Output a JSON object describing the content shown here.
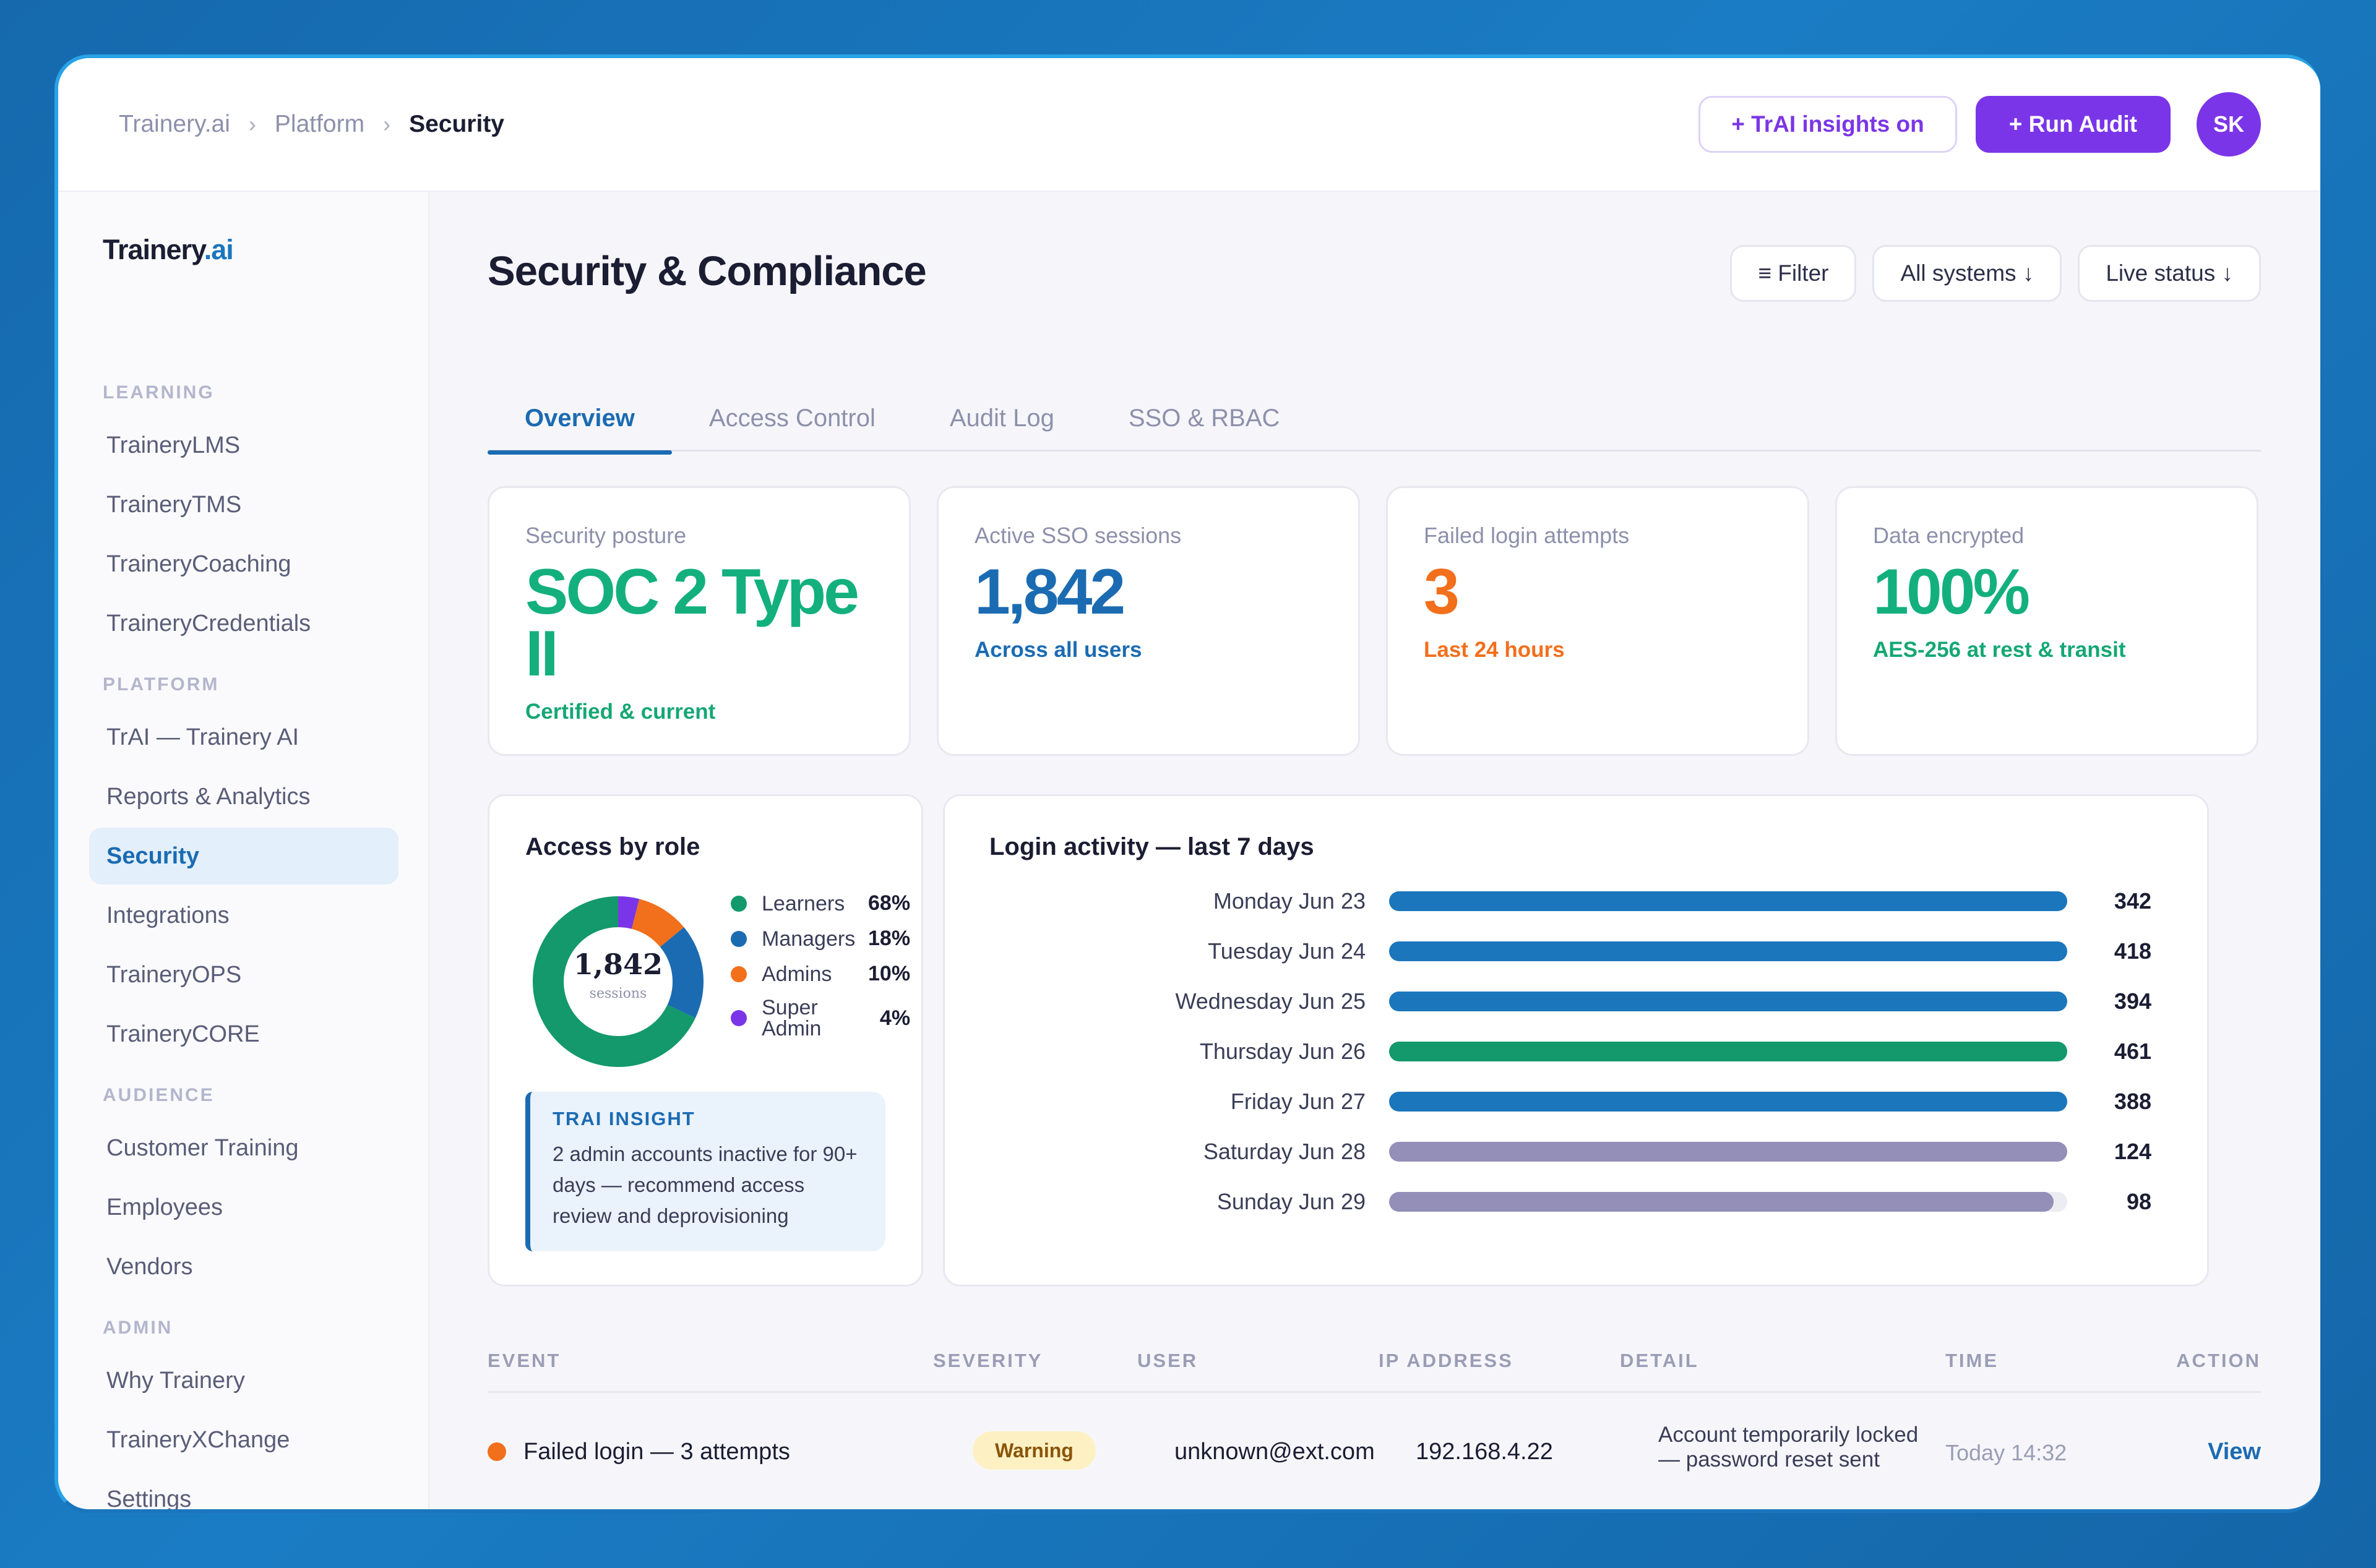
{
  "breadcrumb": {
    "items": [
      "Trainery.ai",
      "Platform"
    ],
    "current": "Security",
    "separator": "›"
  },
  "top_actions": {
    "insights_label": "+ TrAI insights on",
    "audit_label": "+ Run Audit",
    "avatar_initials": "SK"
  },
  "sidebar": {
    "brand_main": "Trainery",
    "brand_suffix": ".ai",
    "sections": [
      {
        "title": "LEARNING",
        "items": [
          "TraineryLMS",
          "TraineryTMS",
          "TraineryCoaching",
          "TraineryCredentials"
        ]
      },
      {
        "title": "PLATFORM",
        "items": [
          "TrAI — Trainery AI",
          "Reports & Analytics",
          "Security",
          "Integrations",
          "TraineryOPS",
          "TraineryCORE"
        ]
      },
      {
        "title": "AUDIENCE",
        "items": [
          "Customer Training",
          "Employees",
          "Vendors"
        ]
      },
      {
        "title": "ADMIN",
        "items": [
          "Why Trainery",
          "TraineryXChange",
          "Settings"
        ]
      }
    ],
    "active_item": "Security"
  },
  "page": {
    "title": "Security & Compliance",
    "filters": [
      "≡ Filter",
      "All systems ↓",
      "Live status ↓"
    ],
    "tabs": [
      "Overview",
      "Access Control",
      "Audit Log",
      "SSO & RBAC"
    ],
    "active_tab": "Overview"
  },
  "stats": [
    {
      "label": "Security posture",
      "value": "SOC 2 Type II",
      "sub": "Certified & current",
      "color": "#13b07e"
    },
    {
      "label": "Active SSO sessions",
      "value": "1,842",
      "sub": "Across all users",
      "color": "#1b6bb2"
    },
    {
      "label": "Failed login attempts",
      "value": "3",
      "sub": "Last 24 hours",
      "color": "#f26f1c"
    },
    {
      "label": "Data encrypted",
      "value": "100%",
      "sub": "AES-256 at rest & transit",
      "color": "#13b07e"
    }
  ],
  "access_by_role": {
    "title": "Access by role",
    "center_value": "1,842",
    "center_label": "sessions",
    "roles": [
      {
        "name": "Learners",
        "pct": "68%",
        "value": 68,
        "color": "#13996b"
      },
      {
        "name": "Managers",
        "pct": "18%",
        "value": 18,
        "color": "#1b6bb2"
      },
      {
        "name": "Admins",
        "pct": "10%",
        "value": 10,
        "color": "#f26f1c"
      },
      {
        "name": "Super Admin",
        "pct": "4%",
        "value": 4,
        "color": "#7b35e8"
      }
    ],
    "insight_title": "TRAI INSIGHT",
    "insight_text": "2 admin accounts inactive for 90+ days — recommend access review and deprovisioning"
  },
  "login_activity": {
    "title": "Login activity — last 7 days",
    "days": [
      {
        "label": "Monday Jun 23",
        "value": 342,
        "display": "342",
        "color": "#1b76bc",
        "fill": 1.0
      },
      {
        "label": "Tuesday Jun 24",
        "value": 418,
        "display": "418",
        "color": "#1b76bc",
        "fill": 1.0
      },
      {
        "label": "Wednesday Jun 25",
        "value": 394,
        "display": "394",
        "color": "#1b76bc",
        "fill": 1.0
      },
      {
        "label": "Thursday Jun 26",
        "value": 461,
        "display": "461",
        "color": "#13996b",
        "fill": 1.0
      },
      {
        "label": "Friday Jun 27",
        "value": 388,
        "display": "388",
        "color": "#1b76bc",
        "fill": 1.0
      },
      {
        "label": "Saturday Jun 28",
        "value": 124,
        "display": "124",
        "color": "#948fb8",
        "fill": 1.0
      },
      {
        "label": "Sunday Jun 29",
        "value": 98,
        "display": "98",
        "color": "#948fb8",
        "fill": 0.98
      }
    ]
  },
  "events": {
    "columns": [
      "EVENT",
      "SEVERITY",
      "USER",
      "IP ADDRESS",
      "DETAIL",
      "TIME",
      "ACTION"
    ],
    "rows": [
      {
        "event": "Failed login — 3 attempts",
        "severity": "Warning",
        "user": "unknown@ext.com",
        "ip": "192.168.4.22",
        "detail_line1": "Account temporarily locked",
        "detail_line2": "— password reset sent",
        "time": "Today 14:32",
        "action": "View",
        "dot_color": "#f26f1c"
      }
    ]
  }
}
